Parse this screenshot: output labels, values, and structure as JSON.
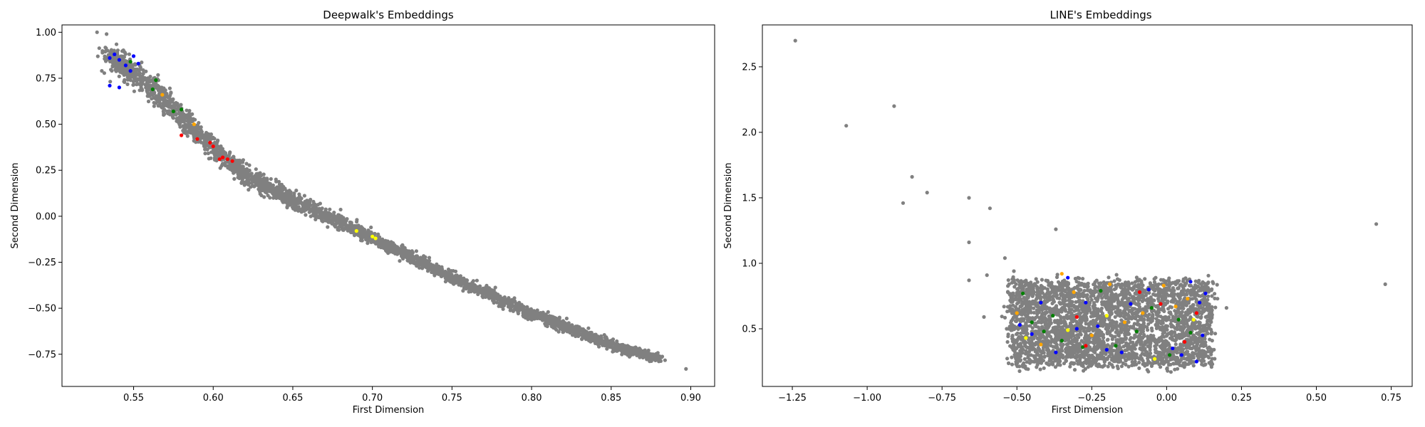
{
  "chart_data": [
    {
      "type": "scatter",
      "title": "Deepwalk's Embeddings",
      "xlabel": "First Dimension",
      "ylabel": "Second Dimension",
      "xlim": [
        0.505,
        0.915
      ],
      "ylim": [
        -0.925,
        1.04
      ],
      "xticks": [
        0.55,
        0.6,
        0.65,
        0.7,
        0.75,
        0.8,
        0.85,
        0.9
      ],
      "xtick_labels": [
        "0.55",
        "0.60",
        "0.65",
        "0.70",
        "0.75",
        "0.80",
        "0.85",
        "0.90"
      ],
      "yticks": [
        -0.75,
        -0.5,
        -0.25,
        0.0,
        0.25,
        0.5,
        0.75,
        1.0
      ],
      "ytick_labels": [
        "−0.75",
        "−0.50",
        "−0.25",
        "0.00",
        "0.25",
        "0.50",
        "0.75",
        "1.00"
      ],
      "grid": false,
      "point_color_default": "#808080",
      "band_points": 3200,
      "band_centerline": [
        [
          0.535,
          0.86
        ],
        [
          0.55,
          0.78
        ],
        [
          0.57,
          0.64
        ],
        [
          0.585,
          0.49
        ],
        [
          0.6,
          0.37
        ],
        [
          0.62,
          0.22
        ],
        [
          0.65,
          0.09
        ],
        [
          0.7,
          -0.12
        ],
        [
          0.75,
          -0.33
        ],
        [
          0.8,
          -0.53
        ],
        [
          0.85,
          -0.7
        ],
        [
          0.88,
          -0.77
        ]
      ],
      "band_width": [
        [
          0.535,
          0.12
        ],
        [
          0.56,
          0.14
        ],
        [
          0.6,
          0.1
        ],
        [
          0.65,
          0.08
        ],
        [
          0.7,
          0.06
        ],
        [
          0.8,
          0.06
        ],
        [
          0.88,
          0.04
        ]
      ],
      "outliers": [
        [
          0.527,
          1.0
        ],
        [
          0.533,
          0.99
        ],
        [
          0.53,
          0.79
        ],
        [
          0.897,
          -0.83
        ],
        [
          0.88,
          -0.76
        ],
        [
          0.875,
          -0.75
        ],
        [
          0.87,
          -0.745
        ]
      ],
      "highlighted_points": [
        {
          "color": "#0000ff",
          "points": [
            [
              0.535,
              0.86
            ],
            [
              0.538,
              0.88
            ],
            [
              0.541,
              0.85
            ],
            [
              0.545,
              0.82
            ],
            [
              0.548,
              0.79
            ],
            [
              0.535,
              0.71
            ],
            [
              0.541,
              0.7
            ],
            [
              0.55,
              0.87
            ],
            [
              0.553,
              0.83
            ]
          ]
        },
        {
          "color": "#008000",
          "points": [
            [
              0.548,
              0.84
            ],
            [
              0.564,
              0.74
            ],
            [
              0.562,
              0.69
            ],
            [
              0.575,
              0.57
            ],
            [
              0.58,
              0.58
            ]
          ]
        },
        {
          "color": "#ff0000",
          "points": [
            [
              0.58,
              0.44
            ],
            [
              0.59,
              0.42
            ],
            [
              0.598,
              0.4
            ],
            [
              0.606,
              0.32
            ],
            [
              0.609,
              0.31
            ],
            [
              0.612,
              0.3
            ],
            [
              0.604,
              0.31
            ],
            [
              0.6,
              0.38
            ]
          ]
        },
        {
          "color": "#ffa500",
          "points": [
            [
              0.568,
              0.66
            ],
            [
              0.588,
              0.5
            ]
          ]
        },
        {
          "color": "#ffff00",
          "points": [
            [
              0.69,
              -0.08
            ],
            [
              0.7,
              -0.11
            ],
            [
              0.702,
              -0.12
            ]
          ]
        }
      ]
    },
    {
      "type": "scatter",
      "title": "LINE's Embeddings",
      "xlabel": "First Dimension",
      "ylabel": "Second Dimension",
      "xlim": [
        -1.35,
        0.82
      ],
      "ylim": [
        0.06,
        2.82
      ],
      "xticks": [
        -1.25,
        -1.0,
        -0.75,
        -0.5,
        -0.25,
        0.0,
        0.25,
        0.5,
        0.75
      ],
      "xtick_labels": [
        "−1.25",
        "−1.00",
        "−0.75",
        "−0.50",
        "−0.25",
        "0.00",
        "0.25",
        "0.50",
        "0.75"
      ],
      "yticks": [
        0.5,
        1.0,
        1.5,
        2.0,
        2.5
      ],
      "ytick_labels": [
        "0.5",
        "1.0",
        "1.5",
        "2.0",
        "2.5"
      ],
      "grid": false,
      "point_color_default": "#808080",
      "cloud_points": 3200,
      "cloud_x_range": [
        -0.52,
        0.15
      ],
      "cloud_y_range": [
        0.22,
        0.86
      ],
      "outliers": [
        [
          -1.24,
          2.7
        ],
        [
          -1.07,
          2.05
        ],
        [
          -0.91,
          2.2
        ],
        [
          -0.88,
          1.46
        ],
        [
          -0.85,
          1.66
        ],
        [
          -0.8,
          1.54
        ],
        [
          -0.66,
          1.5
        ],
        [
          -0.59,
          1.42
        ],
        [
          -0.66,
          1.16
        ],
        [
          -0.37,
          1.26
        ],
        [
          -0.66,
          0.87
        ],
        [
          -0.6,
          0.91
        ],
        [
          -0.54,
          1.04
        ],
        [
          -0.51,
          0.94
        ],
        [
          0.7,
          1.3
        ],
        [
          0.73,
          0.84
        ],
        [
          0.2,
          0.66
        ],
        [
          -0.61,
          0.59
        ],
        [
          0.17,
          0.73
        ]
      ],
      "highlighted_points": [
        {
          "color": "#0000ff",
          "points": [
            [
              -0.49,
              0.53
            ],
            [
              -0.42,
              0.7
            ],
            [
              -0.37,
              0.32
            ],
            [
              -0.33,
              0.89
            ],
            [
              -0.27,
              0.7
            ],
            [
              -0.23,
              0.52
            ],
            [
              -0.2,
              0.34
            ],
            [
              -0.15,
              0.32
            ],
            [
              -0.12,
              0.69
            ],
            [
              -0.06,
              0.8
            ],
            [
              0.02,
              0.35
            ],
            [
              0.05,
              0.3
            ],
            [
              0.08,
              0.86
            ],
            [
              0.1,
              0.25
            ],
            [
              0.11,
              0.7
            ],
            [
              0.13,
              0.77
            ],
            [
              0.12,
              0.45
            ],
            [
              -0.45,
              0.46
            ],
            [
              -0.3,
              0.5
            ]
          ]
        },
        {
          "color": "#008000",
          "points": [
            [
              -0.48,
              0.77
            ],
            [
              -0.45,
              0.55
            ],
            [
              -0.41,
              0.48
            ],
            [
              -0.35,
              0.41
            ],
            [
              -0.28,
              0.36
            ],
            [
              -0.22,
              0.79
            ],
            [
              -0.17,
              0.37
            ],
            [
              -0.1,
              0.48
            ],
            [
              -0.05,
              0.66
            ],
            [
              0.01,
              0.3
            ],
            [
              0.04,
              0.57
            ],
            [
              0.08,
              0.47
            ],
            [
              -0.38,
              0.6
            ]
          ]
        },
        {
          "color": "#ffa500",
          "points": [
            [
              -0.5,
              0.62
            ],
            [
              -0.42,
              0.38
            ],
            [
              -0.35,
              0.92
            ],
            [
              -0.25,
              0.45
            ],
            [
              -0.19,
              0.84
            ],
            [
              -0.14,
              0.55
            ],
            [
              -0.08,
              0.62
            ],
            [
              -0.01,
              0.83
            ],
            [
              0.03,
              0.67
            ],
            [
              0.07,
              0.73
            ],
            [
              -0.31,
              0.78
            ]
          ]
        },
        {
          "color": "#ff0000",
          "points": [
            [
              -0.3,
              0.59
            ],
            [
              -0.27,
              0.37
            ],
            [
              -0.09,
              0.78
            ],
            [
              -0.02,
              0.69
            ],
            [
              0.06,
              0.4
            ],
            [
              0.1,
              0.62
            ]
          ]
        },
        {
          "color": "#ffff00",
          "points": [
            [
              -0.47,
              0.43
            ],
            [
              -0.33,
              0.49
            ],
            [
              -0.2,
              0.6
            ],
            [
              -0.04,
              0.27
            ],
            [
              0.09,
              0.57
            ]
          ]
        }
      ]
    }
  ]
}
